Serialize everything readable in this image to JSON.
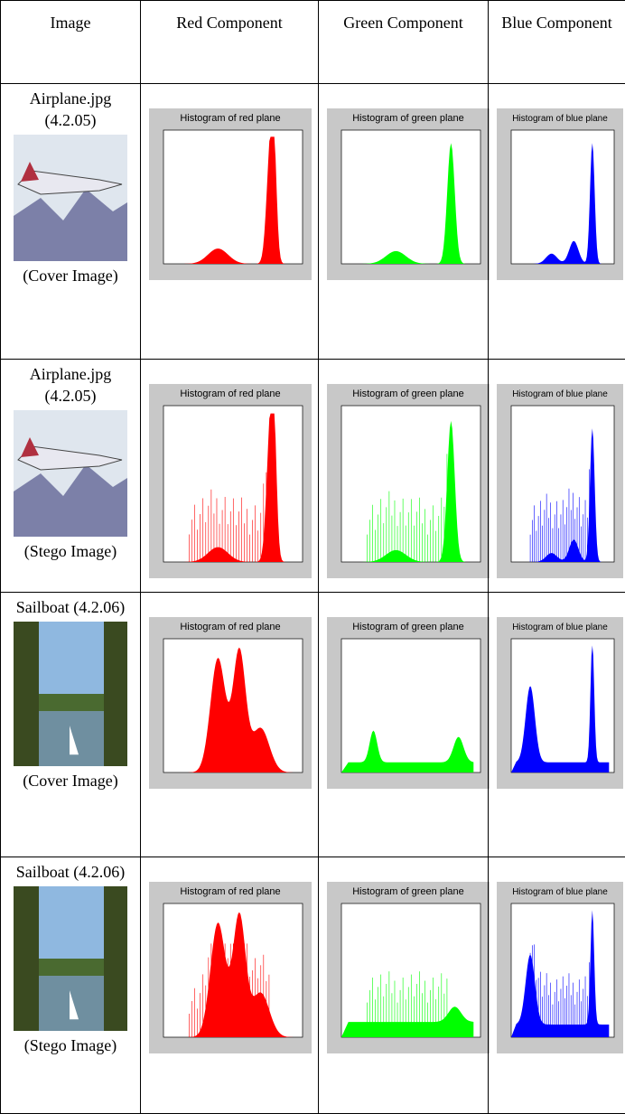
{
  "table": {
    "header": [
      "Image",
      "Red Component",
      "Green Component",
      "Blue Component"
    ],
    "rows": [
      {
        "name": "Airplane.jpg (4.2.05)",
        "caption": "(Cover Image)",
        "histograms": [
          {
            "title": "Histogram of red plane"
          },
          {
            "title": "Histogram of green plane"
          },
          {
            "title": "Histogram of blue plane"
          }
        ]
      },
      {
        "name": "Airplane.jpg (4.2.05)",
        "caption": "(Stego Image)",
        "histograms": [
          {
            "title": "Histogram of red plane"
          },
          {
            "title": "Histogram of green plane"
          },
          {
            "title": "Histogram of blue plane"
          }
        ]
      },
      {
        "name": "Sailboat (4.2.06)",
        "caption": "(Cover Image)",
        "histograms": [
          {
            "title": "Histogram of red plane"
          },
          {
            "title": "Histogram of green plane"
          },
          {
            "title": "Histogram of blue plane"
          }
        ]
      },
      {
        "name": "Sailboat (4.2.06)",
        "caption": "(Stego Image)",
        "histograms": [
          {
            "title": "Histogram of red plane"
          },
          {
            "title": "Histogram of green plane"
          },
          {
            "title": "Histogram of blue plane"
          }
        ]
      }
    ]
  }
}
